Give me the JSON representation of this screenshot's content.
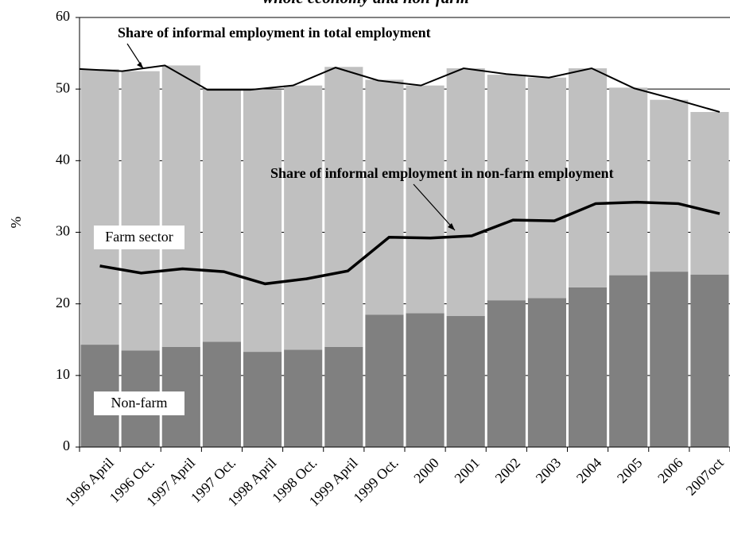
{
  "chart_data": {
    "type": "stacked-bar-line",
    "title": "whole economy and non-farm",
    "ylabel": "%",
    "categories": [
      "1996 April",
      "1996 Oct.",
      "1997 April",
      "1997 Oct.",
      "1998 April",
      "1998 Oct.",
      "1999 April",
      "1999 Oct.",
      "2000",
      "2001",
      "2002",
      "2003",
      "2004",
      "2005",
      "2006",
      "2007oct"
    ],
    "series": [
      {
        "name": "Non-farm",
        "color": "#808080",
        "values": [
          14.3,
          13.5,
          14.0,
          14.7,
          13.3,
          13.6,
          14.0,
          18.5,
          18.7,
          18.3,
          20.5,
          20.8,
          22.3,
          24.0,
          24.5,
          24.1
        ]
      },
      {
        "name": "Farm sector",
        "color": "#c0c0c0",
        "values": [
          38.5,
          39.0,
          39.3,
          35.3,
          36.6,
          36.9,
          39.1,
          32.8,
          31.8,
          34.6,
          31.5,
          30.8,
          30.6,
          26.2,
          24.0,
          22.7
        ]
      }
    ],
    "lines": [
      {
        "name": "Share of informal employment in total employment",
        "color": "#000000",
        "values": [
          52.8,
          52.5,
          53.3,
          49.9,
          49.9,
          50.5,
          53.0,
          51.2,
          50.5,
          52.9,
          52.1,
          51.6,
          52.9,
          50.1,
          48.5,
          46.8
        ]
      },
      {
        "name": "Share of informal employment in non-farm employment",
        "color": "#000000",
        "values": [
          25.3,
          24.3,
          24.9,
          24.5,
          22.8,
          23.5,
          24.6,
          29.3,
          29.2,
          29.5,
          31.7,
          31.6,
          34.0,
          34.2,
          34.0,
          32.6
        ]
      }
    ],
    "ylim": [
      0,
      60
    ],
    "yticks": [
      0,
      10,
      20,
      30,
      40,
      50,
      60
    ],
    "grid": true
  }
}
